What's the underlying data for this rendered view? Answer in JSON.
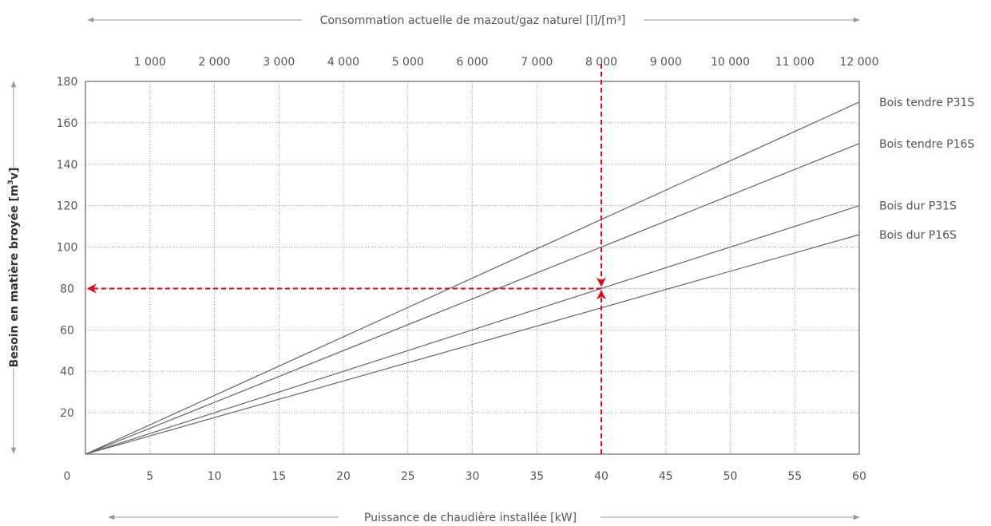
{
  "chart_data": {
    "type": "line",
    "title": "",
    "xlabel": "Puissance de chaudière installée [kW]",
    "x2label": "Consommation actuelle de mazout/gaz naturel [l]/[m³]",
    "ylabel_main": "Besoin en matière broyée [m",
    "ylabel_sup": "3",
    "ylabel_end": "v]",
    "xlim": [
      0,
      60
    ],
    "ylim": [
      0,
      180
    ],
    "x_ticks": [
      5,
      10,
      15,
      20,
      25,
      30,
      35,
      40,
      45,
      50,
      55,
      60
    ],
    "x_tick_labels": [
      "5",
      "10",
      "15",
      "20",
      "25",
      "30",
      "35",
      "40",
      "45",
      "50",
      "55",
      "60"
    ],
    "origin_label": "0",
    "y_ticks": [
      20,
      40,
      60,
      80,
      100,
      120,
      140,
      160,
      180
    ],
    "y_tick_labels": [
      "20",
      "40",
      "60",
      "80",
      "100",
      "120",
      "140",
      "160",
      "180"
    ],
    "x2_ticks": [
      1000,
      2000,
      3000,
      4000,
      5000,
      6000,
      7000,
      8000,
      9000,
      10000,
      11000,
      12000
    ],
    "x2_tick_labels": [
      "1 000",
      "2 000",
      "3 000",
      "4 000",
      "5 000",
      "6 000",
      "7 000",
      "8 000",
      "9 000",
      "10 000",
      "11 000",
      "12 000"
    ],
    "x2lim": [
      0,
      12000
    ],
    "grid": true,
    "legend_placement": "right, at line ends",
    "series": [
      {
        "name": "Bois tendre P31S",
        "x": [
          0,
          60
        ],
        "y": [
          0,
          170
        ]
      },
      {
        "name": "Bois tendre P16S",
        "x": [
          0,
          60
        ],
        "y": [
          0,
          150
        ]
      },
      {
        "name": "Bois dur P31S",
        "x": [
          0,
          60
        ],
        "y": [
          0,
          120
        ]
      },
      {
        "name": "Bois dur P16S",
        "x": [
          0,
          60
        ],
        "y": [
          0,
          106
        ]
      }
    ],
    "annotation": {
      "x": 40,
      "y": 80,
      "color": "#e30613",
      "style": "dashed arrows from top axis down to Bois dur P31S and from that point left to y-axis"
    }
  }
}
